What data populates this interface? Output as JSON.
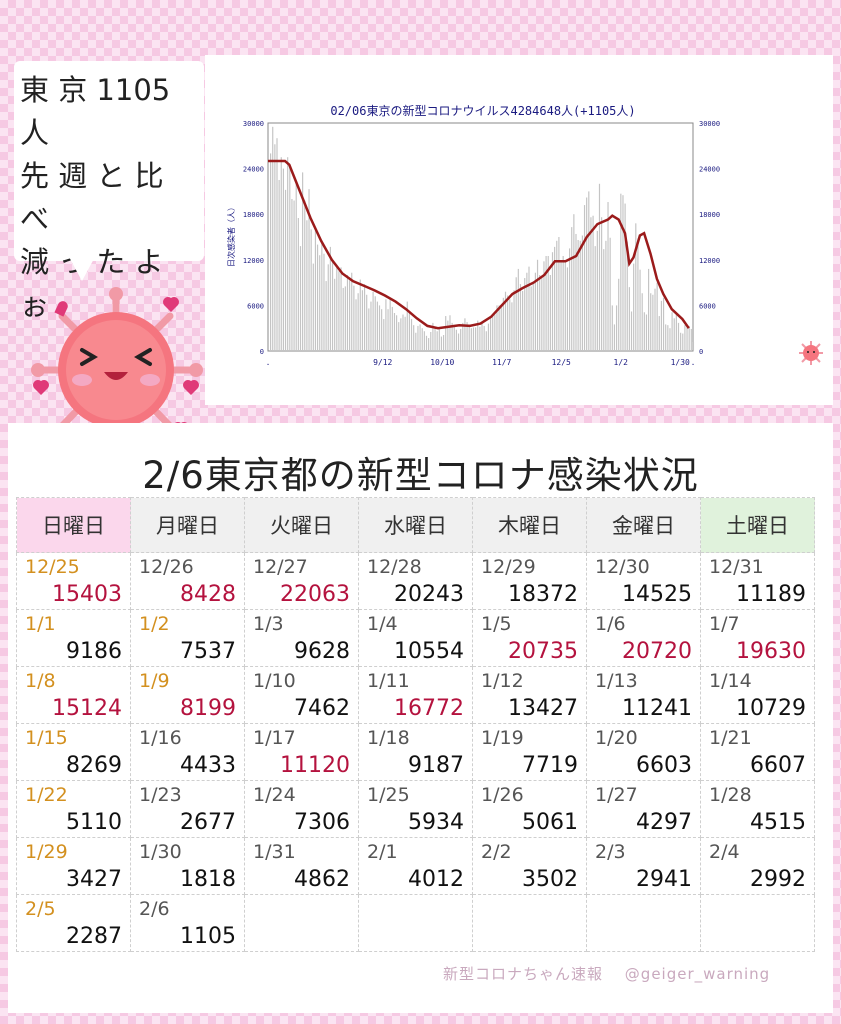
{
  "bubble": {
    "text": "東 京 1105人\n先 週 と 比 べ\n減 っ た よ ぉ"
  },
  "chart_data": {
    "type": "bar",
    "title": "02/06東京の新型コロナウイルス4284648人(+1105人)",
    "ylabel": "日次感染者（人）",
    "ylim": [
      0,
      30000
    ],
    "yticks": [
      "0",
      "6000",
      "12000",
      "18000",
      "24000",
      "30000"
    ],
    "xticks": [
      {
        "label": ".",
        "day": 0
      },
      {
        "label": "9/12",
        "day": 54
      },
      {
        "label": "10/10",
        "day": 82
      },
      {
        "label": "11/7",
        "day": 110
      },
      {
        "label": "12/5",
        "day": 138
      },
      {
        "label": "1/2",
        "day": 166
      },
      {
        "label": "1/30",
        "day": 194
      },
      {
        "label": ".",
        "day": 200
      }
    ],
    "series": [
      {
        "values": [
          26000,
          29500,
          27200,
          28000,
          22500,
          25500,
          24000,
          21200,
          25500,
          24500,
          20000,
          19800,
          22000,
          17500,
          13800,
          23500,
          19800,
          17200,
          21300,
          16000,
          11500,
          16000,
          14000,
          12600,
          14500,
          12800,
          9200,
          11400,
          13700,
          12000,
          9500,
          11000,
          10500,
          11000,
          8300,
          8500,
          10000,
          9300,
          10300,
          8600,
          6800,
          7600,
          9400,
          8000,
          8800,
          7400,
          5600,
          6500,
          7800,
          7200,
          6500,
          6000,
          5500,
          4200,
          6800,
          5500,
          6800,
          5800,
          5000,
          4700,
          3800,
          4300,
          4800,
          4500,
          6500,
          5000,
          4200,
          3400,
          2400,
          3300,
          3500,
          3000,
          2600,
          2000,
          1700,
          2500,
          3700,
          3200,
          2600,
          3000,
          1900,
          2100,
          4600,
          4000,
          4700,
          3700,
          3300,
          2800,
          2300,
          2900,
          3700,
          4300,
          3800,
          3500,
          3000,
          3100,
          3100,
          4000,
          3200,
          3800,
          3300,
          2600,
          3600,
          4300,
          4700,
          4800,
          6000,
          6000,
          5900,
          7000,
          7800,
          7300,
          6800,
          6400,
          8000,
          9700,
          10800,
          8800,
          7900,
          9600,
          10300,
          11100,
          8500,
          9000,
          10300,
          12000,
          10000,
          9900,
          11800,
          12500,
          12500,
          10000,
          13000,
          13700,
          14500,
          15000,
          11800,
          12500,
          11800,
          11000,
          13500,
          16300,
          18000,
          15400,
          14600,
          14500,
          15200,
          19200,
          20200,
          21000,
          17600,
          17800,
          13800,
          15800,
          22000,
          17600,
          13400,
          14500,
          19600,
          14900,
          6000,
          3500,
          6000,
          9500,
          20700,
          20500,
          19400,
          14400,
          8400,
          5200,
          11500,
          16800,
          14800,
          10700,
          7600,
          5100,
          4800,
          10800,
          7600,
          7400,
          8200,
          9000,
          4600,
          6600,
          7000,
          3500,
          3400,
          3000,
          5100,
          4300,
          4800,
          3700,
          2400,
          2300,
          3400,
          3100,
          3300,
          2900,
          1200
        ]
      },
      {
        "values_at_days": [
          [
            0,
            25000
          ],
          [
            8,
            25000
          ],
          [
            10,
            24500
          ],
          [
            15,
            21000
          ],
          [
            20,
            17500
          ],
          [
            25,
            14500
          ],
          [
            30,
            12000
          ],
          [
            35,
            10200
          ],
          [
            40,
            9200
          ],
          [
            45,
            8600
          ],
          [
            50,
            8000
          ],
          [
            55,
            7300
          ],
          [
            60,
            6500
          ],
          [
            65,
            5500
          ],
          [
            70,
            4300
          ],
          [
            75,
            3300
          ],
          [
            80,
            3000
          ],
          [
            85,
            3200
          ],
          [
            90,
            3400
          ],
          [
            95,
            3300
          ],
          [
            100,
            3600
          ],
          [
            105,
            4500
          ],
          [
            110,
            6000
          ],
          [
            115,
            7500
          ],
          [
            120,
            8300
          ],
          [
            125,
            9000
          ],
          [
            130,
            10000
          ],
          [
            135,
            11800
          ],
          [
            140,
            11800
          ],
          [
            145,
            12500
          ],
          [
            150,
            15000
          ],
          [
            155,
            16700
          ],
          [
            160,
            17300
          ],
          [
            162,
            17800
          ],
          [
            165,
            17300
          ],
          [
            168,
            15500
          ],
          [
            170,
            11500
          ],
          [
            172,
            12300
          ],
          [
            175,
            15200
          ],
          [
            177,
            15500
          ],
          [
            180,
            12800
          ],
          [
            183,
            9500
          ],
          [
            186,
            7500
          ],
          [
            190,
            5500
          ],
          [
            195,
            4200
          ],
          [
            198,
            3000
          ]
        ]
      }
    ]
  },
  "title": "2/6東京都の新型コロナ感染状況",
  "weekdays": [
    "日曜日",
    "月曜日",
    "火曜日",
    "水曜日",
    "木曜日",
    "金曜日",
    "土曜日"
  ],
  "calendar": [
    [
      {
        "date": "12/25",
        "value": "15403"
      },
      {
        "date": "12/26",
        "value": "8428"
      },
      {
        "date": "12/27",
        "value": "22063"
      },
      {
        "date": "12/28",
        "value": "20243"
      },
      {
        "date": "12/29",
        "value": "18372"
      },
      {
        "date": "12/30",
        "value": "14525"
      },
      {
        "date": "12/31",
        "value": "11189"
      }
    ],
    [
      {
        "date": "1/1",
        "value": "9186"
      },
      {
        "date": "1/2",
        "value": "7537"
      },
      {
        "date": "1/3",
        "value": "9628"
      },
      {
        "date": "1/4",
        "value": "10554"
      },
      {
        "date": "1/5",
        "value": "20735"
      },
      {
        "date": "1/6",
        "value": "20720"
      },
      {
        "date": "1/7",
        "value": "19630"
      }
    ],
    [
      {
        "date": "1/8",
        "value": "15124"
      },
      {
        "date": "1/9",
        "value": "8199"
      },
      {
        "date": "1/10",
        "value": "7462"
      },
      {
        "date": "1/11",
        "value": "16772"
      },
      {
        "date": "1/12",
        "value": "13427"
      },
      {
        "date": "1/13",
        "value": "11241"
      },
      {
        "date": "1/14",
        "value": "10729"
      }
    ],
    [
      {
        "date": "1/15",
        "value": "8269"
      },
      {
        "date": "1/16",
        "value": "4433"
      },
      {
        "date": "1/17",
        "value": "11120"
      },
      {
        "date": "1/18",
        "value": "9187"
      },
      {
        "date": "1/19",
        "value": "7719"
      },
      {
        "date": "1/20",
        "value": "6603"
      },
      {
        "date": "1/21",
        "value": "6607"
      }
    ],
    [
      {
        "date": "1/22",
        "value": "5110"
      },
      {
        "date": "1/23",
        "value": "2677"
      },
      {
        "date": "1/24",
        "value": "7306"
      },
      {
        "date": "1/25",
        "value": "5934"
      },
      {
        "date": "1/26",
        "value": "5061"
      },
      {
        "date": "1/27",
        "value": "4297"
      },
      {
        "date": "1/28",
        "value": "4515"
      }
    ],
    [
      {
        "date": "1/29",
        "value": "3427"
      },
      {
        "date": "1/30",
        "value": "1818"
      },
      {
        "date": "1/31",
        "value": "4862"
      },
      {
        "date": "2/1",
        "value": "4012"
      },
      {
        "date": "2/2",
        "value": "3502"
      },
      {
        "date": "2/3",
        "value": "2941"
      },
      {
        "date": "2/4",
        "value": "2992"
      }
    ],
    [
      {
        "date": "2/5",
        "value": "2287"
      },
      {
        "date": "2/6",
        "value": "1105"
      },
      {
        "date": "",
        "value": ""
      },
      {
        "date": "",
        "value": ""
      },
      {
        "date": "",
        "value": ""
      },
      {
        "date": "",
        "value": ""
      },
      {
        "date": "",
        "value": ""
      }
    ]
  ],
  "footer": {
    "brand": "新型コロナちゃん速報",
    "handle": "@geiger_warning"
  },
  "colors": {
    "date_holiday": "#d3901f",
    "value_red": "#b4123e",
    "line": "#9b1b1b",
    "bar": "#c4c4c4"
  }
}
